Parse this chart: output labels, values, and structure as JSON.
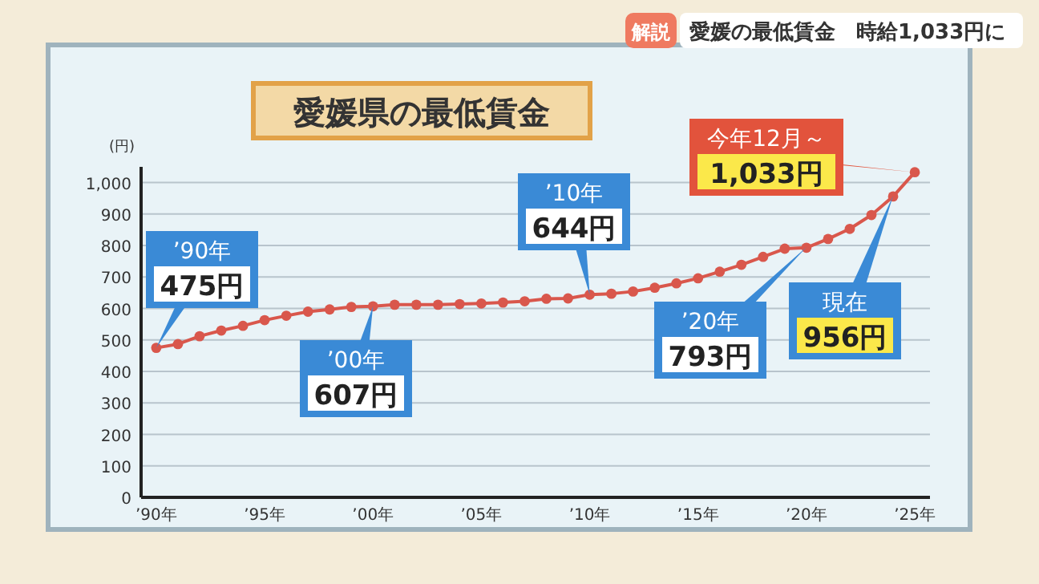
{
  "chart_data": {
    "type": "line",
    "title": "愛媛県の最低賃金",
    "ylabel": "(円)",
    "categories": [
      "’90年",
      null,
      null,
      null,
      null,
      "’95年",
      null,
      null,
      null,
      null,
      "’00年",
      null,
      null,
      null,
      null,
      "’05年",
      null,
      null,
      null,
      null,
      "’10年",
      null,
      null,
      null,
      null,
      "’15年",
      null,
      null,
      null,
      null,
      "’20年",
      null,
      null,
      null,
      null,
      "’25年"
    ],
    "series": [
      {
        "color": "#d9574c",
        "values": [
          475,
          487,
          512,
          530,
          545,
          563,
          577,
          590,
          597,
          605,
          607,
          612,
          612,
          612,
          614,
          616,
          619,
          623,
          631,
          632,
          644,
          647,
          654,
          666,
          680,
          696,
          717,
          739,
          764,
          790,
          793,
          821,
          853,
          897,
          956,
          1033
        ]
      }
    ],
    "ylim": [
      0,
      1050
    ],
    "yticks": [
      0,
      100,
      200,
      300,
      400,
      500,
      600,
      700,
      800,
      900,
      {
        "value": 1000,
        "label": "1,000"
      }
    ],
    "grid": "y",
    "marker": "circle",
    "line_style": "solid",
    "annotations": [
      "解説",
      "愛媛の最低賃金　時給1,033円に",
      {
        "text": "’90年\n475円",
        "x": "’90年",
        "y": 475
      },
      {
        "text": "’00年\n607円",
        "x": "’00年",
        "y": 607
      },
      {
        "text": "’10年\n644円",
        "x": "’10年",
        "y": 644
      },
      "’20年\n793円",
      "現在\n956円",
      {
        "text": "今年12月～\n1,033円",
        "x": "’25年",
        "y": 1033
      }
    ]
  }
}
